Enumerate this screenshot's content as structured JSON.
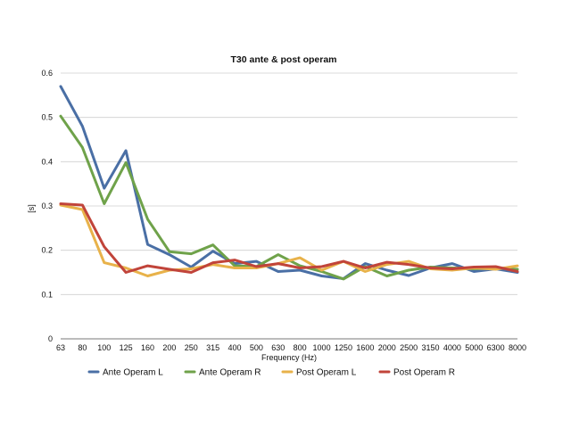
{
  "chart_data": {
    "type": "line",
    "title": "T30 ante & post operam",
    "xlabel": "Frequency (Hz)",
    "ylabel": "[s]",
    "ylim": [
      0,
      0.6
    ],
    "yticks": [
      "0",
      "0.1",
      "0.2",
      "0.3",
      "0.4",
      "0.5",
      "0.6"
    ],
    "grid": true,
    "legend_position": "bottom",
    "categories": [
      "63",
      "80",
      "100",
      "125",
      "160",
      "200",
      "250",
      "315",
      "400",
      "500",
      "630",
      "800",
      "1000",
      "1250",
      "1600",
      "2000",
      "2500",
      "3150",
      "4000",
      "5000",
      "6300",
      "8000"
    ],
    "series": [
      {
        "name": "Ante Operam L",
        "color": "#4a6fa5",
        "values": [
          0.57,
          0.48,
          0.34,
          0.425,
          0.213,
          0.19,
          0.162,
          0.198,
          0.17,
          0.175,
          0.152,
          0.155,
          0.142,
          0.136,
          0.17,
          0.155,
          0.143,
          0.16,
          0.17,
          0.152,
          0.158,
          0.15
        ]
      },
      {
        "name": "Ante Operam R",
        "color": "#6fa24a",
        "values": [
          0.503,
          0.432,
          0.305,
          0.398,
          0.27,
          0.197,
          0.192,
          0.212,
          0.165,
          0.163,
          0.19,
          0.165,
          0.152,
          0.135,
          0.163,
          0.142,
          0.155,
          0.162,
          0.16,
          0.158,
          0.16,
          0.157
        ]
      },
      {
        "name": "Post Operam L",
        "color": "#e8b24a",
        "values": [
          0.302,
          0.292,
          0.172,
          0.16,
          0.142,
          0.155,
          0.158,
          0.168,
          0.16,
          0.16,
          0.17,
          0.183,
          0.155,
          0.175,
          0.152,
          0.168,
          0.175,
          0.158,
          0.155,
          0.16,
          0.157,
          0.165
        ]
      },
      {
        "name": "Post Operam R",
        "color": "#c1443a",
        "values": [
          0.305,
          0.302,
          0.208,
          0.15,
          0.165,
          0.157,
          0.15,
          0.172,
          0.178,
          0.163,
          0.17,
          0.16,
          0.163,
          0.175,
          0.16,
          0.173,
          0.168,
          0.16,
          0.158,
          0.162,
          0.163,
          0.152
        ]
      }
    ]
  }
}
